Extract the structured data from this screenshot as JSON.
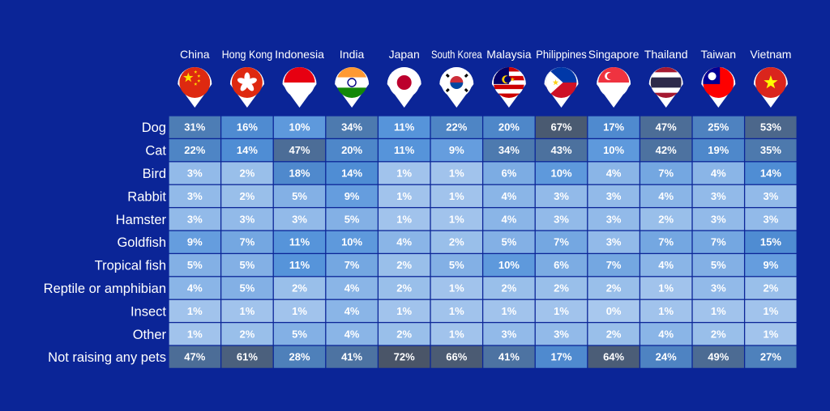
{
  "chart_data": {
    "type": "heatmap",
    "unit": "%",
    "countries": [
      "China",
      "Hong Kong",
      "Indonesia",
      "India",
      "Japan",
      "South Korea",
      "Malaysia",
      "Philippines",
      "Singapore",
      "Thailand",
      "Taiwan",
      "Vietnam"
    ],
    "flag_icons": [
      "china-flag-icon",
      "hong-kong-flag-icon",
      "indonesia-flag-icon",
      "india-flag-icon",
      "japan-flag-icon",
      "south-korea-flag-icon",
      "malaysia-flag-icon",
      "philippines-flag-icon",
      "singapore-flag-icon",
      "thailand-flag-icon",
      "taiwan-flag-icon",
      "vietnam-flag-icon"
    ],
    "rows": [
      {
        "label": "Dog",
        "values": [
          31,
          16,
          10,
          34,
          11,
          22,
          20,
          67,
          17,
          47,
          25,
          53
        ]
      },
      {
        "label": "Cat",
        "values": [
          22,
          14,
          47,
          20,
          11,
          9,
          34,
          43,
          10,
          42,
          19,
          35
        ]
      },
      {
        "label": "Bird",
        "values": [
          3,
          2,
          18,
          14,
          1,
          1,
          6,
          10,
          4,
          7,
          4,
          14
        ]
      },
      {
        "label": "Rabbit",
        "values": [
          3,
          2,
          5,
          9,
          1,
          1,
          4,
          3,
          3,
          4,
          3,
          3
        ]
      },
      {
        "label": "Hamster",
        "values": [
          3,
          3,
          3,
          5,
          1,
          1,
          4,
          3,
          3,
          2,
          3,
          3
        ]
      },
      {
        "label": "Goldfish",
        "values": [
          9,
          7,
          11,
          10,
          4,
          2,
          5,
          7,
          3,
          7,
          7,
          15
        ]
      },
      {
        "label": "Tropical fish",
        "values": [
          5,
          5,
          11,
          7,
          2,
          5,
          10,
          6,
          7,
          4,
          5,
          9
        ]
      },
      {
        "label": "Reptile or amphibian",
        "values": [
          4,
          5,
          2,
          4,
          2,
          1,
          2,
          2,
          2,
          1,
          3,
          2
        ]
      },
      {
        "label": "Insect",
        "values": [
          1,
          1,
          1,
          4,
          1,
          1,
          1,
          1,
          0,
          1,
          1,
          1
        ]
      },
      {
        "label": "Other",
        "values": [
          1,
          2,
          5,
          4,
          2,
          1,
          3,
          3,
          2,
          4,
          2,
          1
        ]
      },
      {
        "label": "Not raising any pets",
        "values": [
          47,
          61,
          28,
          41,
          72,
          66,
          41,
          17,
          64,
          24,
          49,
          27
        ]
      }
    ],
    "colors": {
      "background": "#0b2597",
      "scale_low": "#a8c8ee",
      "scale_mid": "#4f8fd8",
      "scale_high": "#4a5568",
      "cell_text": "#ffffff"
    }
  }
}
